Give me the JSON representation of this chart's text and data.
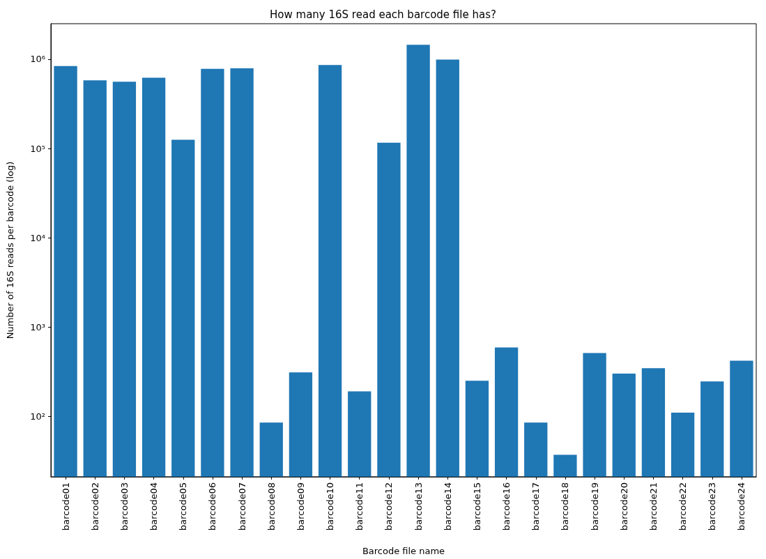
{
  "chart_data": {
    "type": "bar",
    "title": "How many 16S read each barcode file has?",
    "xlabel": "Barcode file name",
    "ylabel": "Number of 16S reads per barcode (log)",
    "categories": [
      "barcode01",
      "barcode02",
      "barcode03",
      "barcode04",
      "barcode05",
      "barcode06",
      "barcode07",
      "barcode08",
      "barcode09",
      "barcode10",
      "barcode11",
      "barcode12",
      "barcode13",
      "barcode14",
      "barcode15",
      "barcode16",
      "barcode17",
      "barcode18",
      "barcode19",
      "barcode20",
      "barcode21",
      "barcode22",
      "barcode23",
      "barcode24"
    ],
    "values": [
      840000,
      580000,
      560000,
      620000,
      125000,
      780000,
      790000,
      85,
      310,
      860000,
      190,
      116000,
      1450000,
      990000,
      250,
      590,
      85,
      37,
      510,
      300,
      345,
      110,
      245,
      420
    ],
    "color": "#1f77b4",
    "log": "y",
    "ylim": [
      21,
      2500000
    ],
    "yticks": [
      {
        "value": 100,
        "label": "10²"
      },
      {
        "value": 1000,
        "label": "10³"
      },
      {
        "value": 10000,
        "label": "10⁴"
      },
      {
        "value": 100000,
        "label": "10⁵"
      },
      {
        "value": 1000000,
        "label": "10⁶"
      }
    ],
    "grid": false
  }
}
